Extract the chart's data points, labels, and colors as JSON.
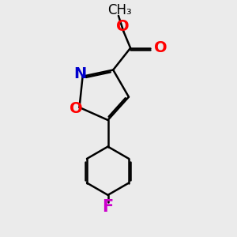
{
  "background_color": "#ebebeb",
  "bond_color": "#000000",
  "bond_width": 1.8,
  "atom_colors": {
    "O": "#ff0000",
    "N": "#0000cc",
    "F": "#cc00cc",
    "C": "#000000"
  },
  "font_size_atom": 14,
  "font_size_methyl": 12,
  "figsize": [
    3.0,
    3.0
  ],
  "dpi": 100
}
